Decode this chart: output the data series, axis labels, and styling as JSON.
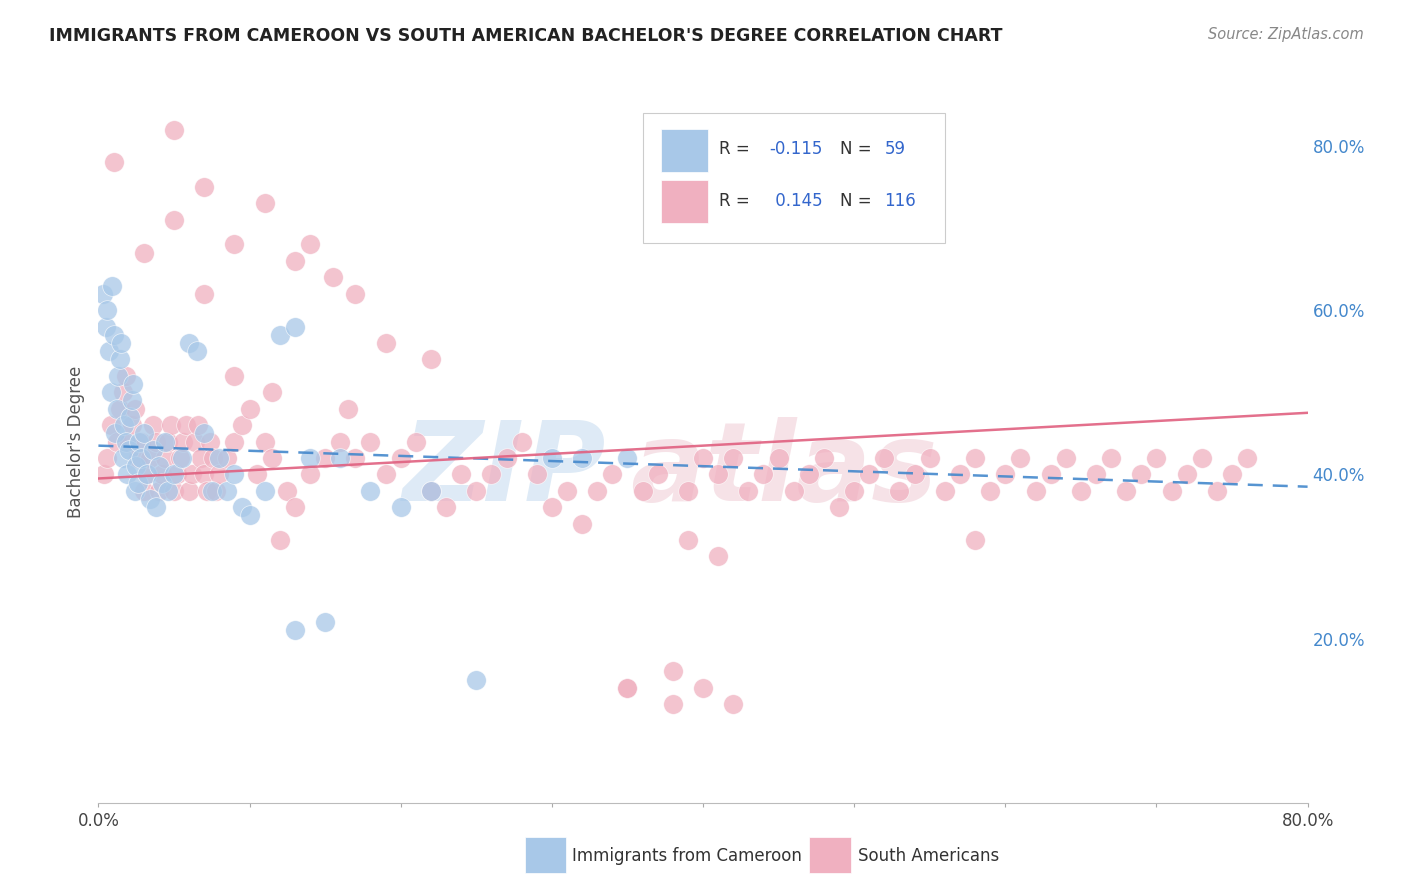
{
  "title": "IMMIGRANTS FROM CAMEROON VS SOUTH AMERICAN BACHELOR'S DEGREE CORRELATION CHART",
  "source": "Source: ZipAtlas.com",
  "ylabel": "Bachelor's Degree",
  "xlim": [
    0.0,
    0.8
  ],
  "ylim": [
    0.0,
    0.88
  ],
  "background_color": "#ffffff",
  "grid_color": "#e0e0e0",
  "blue_color": "#a8c8e8",
  "pink_color": "#f0b0c0",
  "blue_line_color": "#4488cc",
  "pink_line_color": "#e06080",
  "watermark_blue": "#c8ddf0",
  "watermark_pink": "#f0d0d8",
  "legend_R1": "-0.115",
  "legend_N1": "59",
  "legend_R2": "0.145",
  "legend_N2": "116",
  "right_tick_color": "#4488cc",
  "blue_trend_start_y": 0.435,
  "blue_trend_end_y": 0.385,
  "pink_trend_start_y": 0.395,
  "pink_trend_end_y": 0.475
}
